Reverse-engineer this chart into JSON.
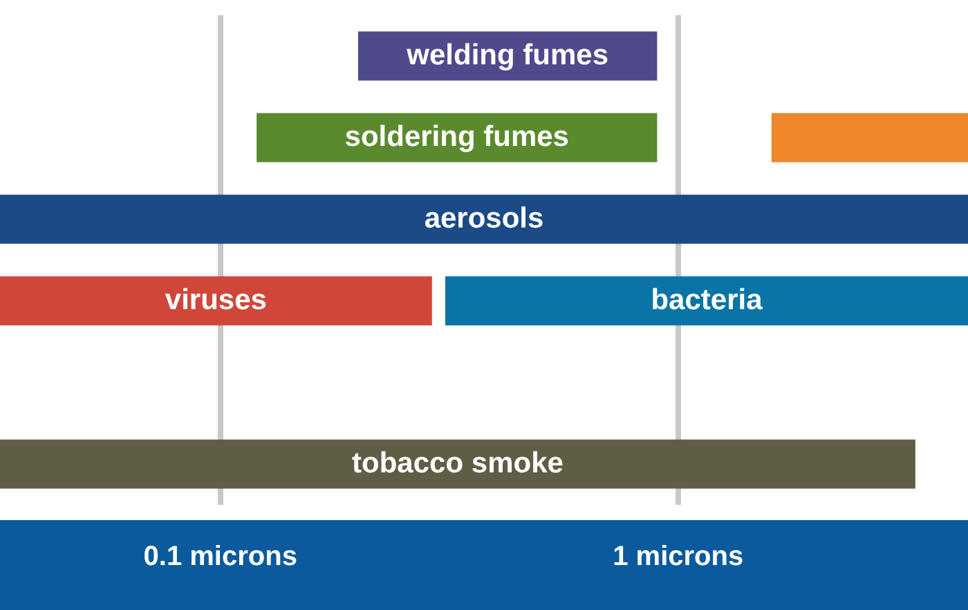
{
  "chart_data": {
    "type": "bar",
    "orientation": "horizontal",
    "categories": [
      null,
      null,
      null,
      null,
      null,
      null
    ],
    "log": "x",
    "xlim": [
      0.033,
      4.3
    ],
    "xticks": [
      {
        "value": 0.1,
        "label": "0.1 microns"
      },
      {
        "value": 1,
        "label": "1 microns"
      }
    ],
    "grid": "x",
    "legend": false,
    "tick_labels": "x",
    "series": [
      {
        "name": "welding fumes",
        "color": "#4f4a8c",
        "values": [
          0.7,
          null,
          null,
          null,
          null,
          null
        ],
        "base": [
          0.2,
          null,
          null,
          null,
          null,
          null
        ]
      },
      {
        "name": "soldering fumes",
        "color": "#5a8a2e",
        "values": [
          null,
          0.78,
          null,
          null,
          null,
          null
        ],
        "base": [
          null,
          0.12,
          null,
          null,
          null,
          null
        ]
      },
      {
        "color": "#f0862a",
        "values": [
          null,
          2.7,
          null,
          null,
          null,
          null
        ],
        "base": [
          null,
          1.6,
          null,
          null,
          null,
          null
        ]
      },
      {
        "name": "aerosols",
        "color": "#1b4a86",
        "values": [
          null,
          null,
          4.267,
          null,
          null,
          null
        ],
        "base": [
          null,
          null,
          0.033,
          null,
          null,
          null
        ]
      },
      {
        "name": "viruses",
        "color": "#d0473a",
        "values": [
          null,
          null,
          null,
          0.257,
          null,
          null
        ],
        "base": [
          null,
          null,
          null,
          0.033,
          null,
          null
        ]
      },
      {
        "name": "bacteria",
        "color": "#0a74a6",
        "values": [
          null,
          null,
          null,
          3.99,
          null,
          null
        ],
        "base": [
          null,
          null,
          null,
          0.31,
          null,
          null
        ]
      },
      {
        "name": "tobacco smoke",
        "color": "#5f5e45",
        "values": [
          null,
          null,
          null,
          null,
          null,
          3.267
        ],
        "base": [
          null,
          null,
          null,
          null,
          null,
          0.033
        ]
      }
    ]
  }
}
